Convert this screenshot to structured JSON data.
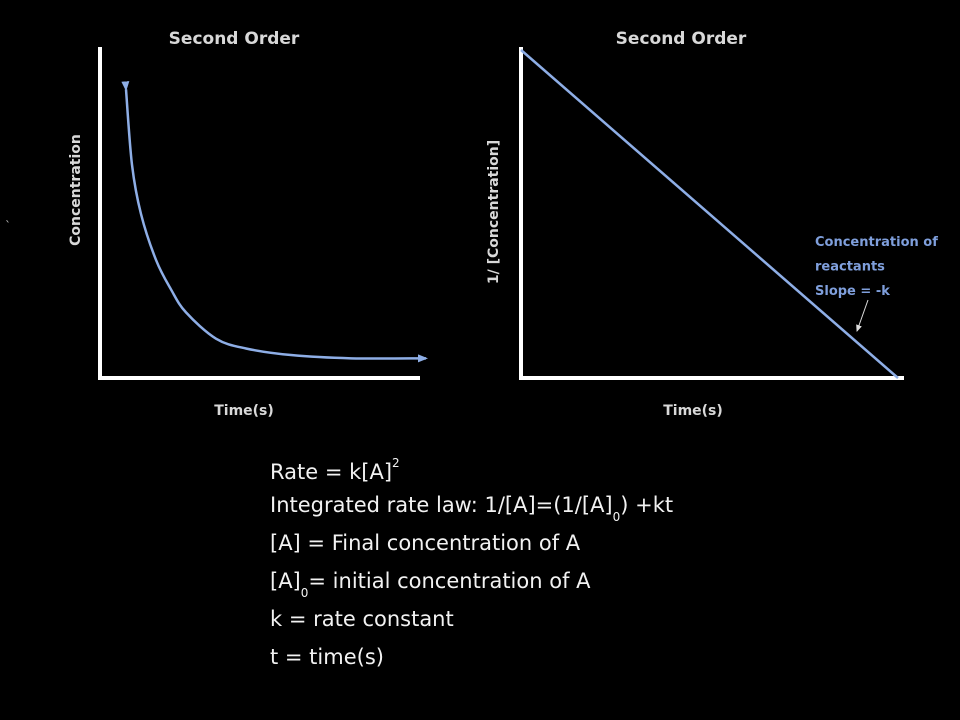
{
  "chart_data": [
    {
      "type": "line",
      "title": "Second Order",
      "xlabel": "Time(s)",
      "ylabel": "Concentration",
      "series": [
        {
          "x": [
            0,
            0.02,
            0.05,
            0.1,
            0.15,
            0.2,
            0.3,
            0.4,
            0.55,
            0.75,
            1.0
          ],
          "y": [
            0.88,
            0.65,
            0.5,
            0.36,
            0.27,
            0.2,
            0.12,
            0.09,
            0.07,
            0.06,
            0.06
          ]
        }
      ],
      "color": "#8eaee6"
    },
    {
      "type": "line",
      "title": "Second Order",
      "xlabel": "Time(s)",
      "ylabel": "1/ [Concentration]",
      "series": [
        {
          "x": [
            0,
            1
          ],
          "y": [
            1,
            0
          ]
        }
      ],
      "annotations": [
        "Concentration of",
        "reactants",
        "Slope = -k"
      ],
      "color": "#8eaee6"
    }
  ],
  "formulas": {
    "rate_a": "Rate = k[A]",
    "rate_sup": "2",
    "integrated_a": "Integrated rate law: 1/[A]=(1/[A]",
    "integrated_sub": "0",
    "integrated_b": ") +kt",
    "final_conc": "[A] = Final concentration of A",
    "initial_a": "[A]",
    "initial_sub": "0",
    "initial_b": "= initial concentration of A",
    "rate_constant": "k = rate constant",
    "time": "t = time(s)"
  },
  "stray_mark": "`"
}
